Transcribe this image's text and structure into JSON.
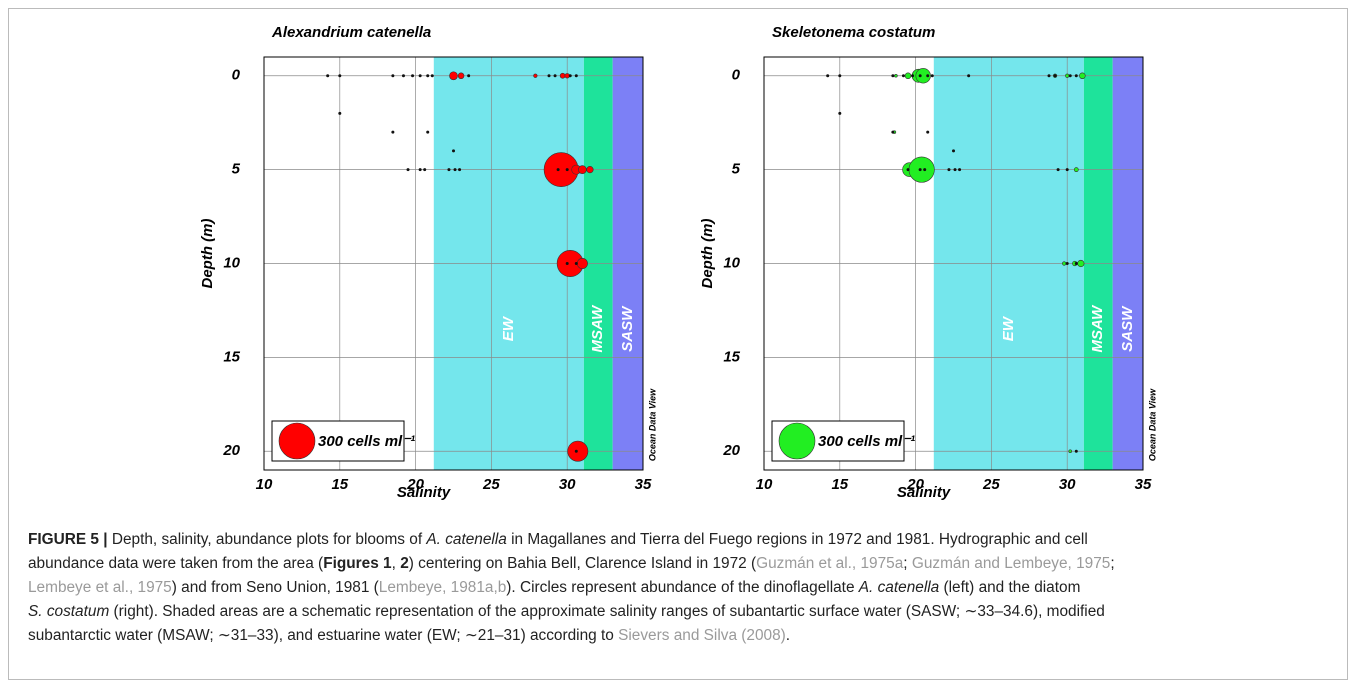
{
  "chart_data": [
    {
      "type": "bubble",
      "title": "Alexandrium catenella",
      "xlabel": "Salinity",
      "ylabel": "Depth (m)",
      "xlim": [
        10,
        35
      ],
      "xticks": [
        10,
        15,
        20,
        25,
        30,
        35
      ],
      "ylim": [
        -1,
        21
      ],
      "y_inverted": true,
      "yticks": [
        0,
        5,
        10,
        15,
        20
      ],
      "grid": true,
      "regions": [
        {
          "label": "EW",
          "from": 21.2,
          "to": 31.1,
          "color": "#74e6ec"
        },
        {
          "label": "MSAW",
          "from": 31.1,
          "to": 33,
          "color": "#1ee39b"
        },
        {
          "label": "SASW",
          "from": 33,
          "to": 35,
          "color": "#7c80f6"
        }
      ],
      "stations": {
        "x": [
          14.2,
          15,
          18.5,
          19.2,
          19.8,
          20.3,
          20.8,
          21.1,
          23.5,
          28.8,
          29.2,
          30.2,
          30.6,
          15,
          18.5,
          20.8,
          22.5,
          19.5,
          20.3,
          20.6,
          22.2,
          22.6,
          22.9,
          29.4,
          30,
          30,
          30.6,
          30.6
        ],
        "y": [
          0,
          0,
          0,
          0,
          0,
          0,
          0,
          0,
          0,
          0,
          0,
          0,
          0,
          2,
          3,
          3,
          4,
          5,
          5,
          5,
          5,
          5,
          5,
          5,
          5,
          10,
          10,
          20
        ]
      },
      "series": [
        {
          "color": "#ff0000",
          "x": [
            22.5,
            23,
            27.9,
            29.7,
            30,
            29.6,
            30.6,
            31,
            31.5,
            30.2,
            31,
            30.7
          ],
          "y": [
            0,
            0,
            0,
            0,
            0,
            5,
            5,
            5,
            5,
            10,
            10,
            20
          ],
          "sizes": [
            15,
            8,
            3,
            6,
            5,
            270,
            20,
            15,
            10,
            160,
            25,
            95
          ]
        }
      ],
      "legend": {
        "label": "300 cells ml⁻¹",
        "size": 300
      },
      "watermark": "Ocean Data View"
    },
    {
      "type": "bubble",
      "title": "Skeletonema costatum",
      "xlabel": "Salinity",
      "ylabel": "Depth (m)",
      "xlim": [
        10,
        35
      ],
      "xticks": [
        10,
        15,
        20,
        25,
        30,
        35
      ],
      "ylim": [
        -1,
        21
      ],
      "y_inverted": true,
      "yticks": [
        0,
        5,
        10,
        15,
        20
      ],
      "grid": true,
      "regions": [
        {
          "label": "EW",
          "from": 21.2,
          "to": 31.1,
          "color": "#74e6ec"
        },
        {
          "label": "MSAW",
          "from": 31.1,
          "to": 33,
          "color": "#1ee39b"
        },
        {
          "label": "SASW",
          "from": 33,
          "to": 35,
          "color": "#7c80f6"
        }
      ],
      "stations": {
        "x": [
          14.2,
          15,
          18.5,
          19.2,
          19.8,
          20.3,
          20.8,
          21.1,
          23.5,
          28.8,
          29.2,
          30.2,
          30.6,
          15,
          18.5,
          20.8,
          22.5,
          19.5,
          20.3,
          20.6,
          22.2,
          22.6,
          22.9,
          29.4,
          30,
          30,
          30.6,
          30.6
        ],
        "y": [
          0,
          0,
          0,
          0,
          0,
          0,
          0,
          0,
          0,
          0,
          0,
          0,
          0,
          2,
          3,
          3,
          4,
          5,
          5,
          5,
          5,
          5,
          5,
          5,
          5,
          10,
          10,
          20
        ]
      },
      "series": [
        {
          "color": "#22ee22",
          "x": [
            18.7,
            19.5,
            20.2,
            20.5,
            29.2,
            30,
            31,
            18.6,
            19.6,
            20.4,
            30.6,
            29.8,
            30.5,
            30.9,
            30.2
          ],
          "y": [
            0,
            0,
            0,
            0,
            0,
            0,
            0,
            3,
            5,
            5,
            5,
            10,
            10,
            10,
            20
          ],
          "sizes": [
            2,
            8,
            40,
            50,
            3,
            3,
            8,
            2,
            45,
            150,
            4,
            3,
            5,
            10,
            2
          ]
        }
      ],
      "legend": {
        "label": "300 cells ml⁻¹",
        "size": 300
      },
      "watermark": "Ocean Data View"
    }
  ],
  "caption": {
    "lines": [
      [
        {
          "text": "FIGURE 5 |",
          "style": "bold"
        },
        {
          "text": " Depth, salinity, abundance plots for blooms of ",
          "style": "plain"
        },
        {
          "text": "A. catenella",
          "style": "italic"
        },
        {
          "text": " in Magallanes and Tierra del Fuego regions in 1972 and 1981. Hydrographic and cell",
          "style": "plain"
        }
      ],
      [
        {
          "text": "abundance data were taken from the area (",
          "style": "plain"
        },
        {
          "text": "Figures 1",
          "style": "bold"
        },
        {
          "text": ", ",
          "style": "plain"
        },
        {
          "text": "2",
          "style": "bold"
        },
        {
          "text": ") centering on Bahia Bell, Clarence Island in 1972 (",
          "style": "plain"
        },
        {
          "text": "Guzmán et al., 1975a",
          "style": "link"
        },
        {
          "text": "; ",
          "style": "plain"
        },
        {
          "text": "Guzmán and Lembeye, 1975",
          "style": "link"
        },
        {
          "text": ";",
          "style": "plain"
        }
      ],
      [
        {
          "text": "Lembeye et al., 1975",
          "style": "link"
        },
        {
          "text": ") and from Seno Union, 1981 (",
          "style": "plain"
        },
        {
          "text": "Lembeye, 1981a,b",
          "style": "link"
        },
        {
          "text": "). Circles represent abundance of the dinoflagellate ",
          "style": "plain"
        },
        {
          "text": "A. catenella",
          "style": "italic"
        },
        {
          "text": " (left) and the diatom",
          "style": "plain"
        }
      ],
      [
        {
          "text": "S. costatum",
          "style": "italic"
        },
        {
          "text": " (right). Shaded areas are a schematic representation of the approximate salinity ranges of subantartic surface water (SASW; ∼33–34.6), modified",
          "style": "plain"
        }
      ],
      [
        {
          "text": "subantarctic water (MSAW; ∼31–33), and estuarine water (EW; ∼21–31) according to ",
          "style": "plain"
        },
        {
          "text": "Sievers and Silva (2008)",
          "style": "link"
        },
        {
          "text": ".",
          "style": "plain"
        }
      ]
    ]
  }
}
